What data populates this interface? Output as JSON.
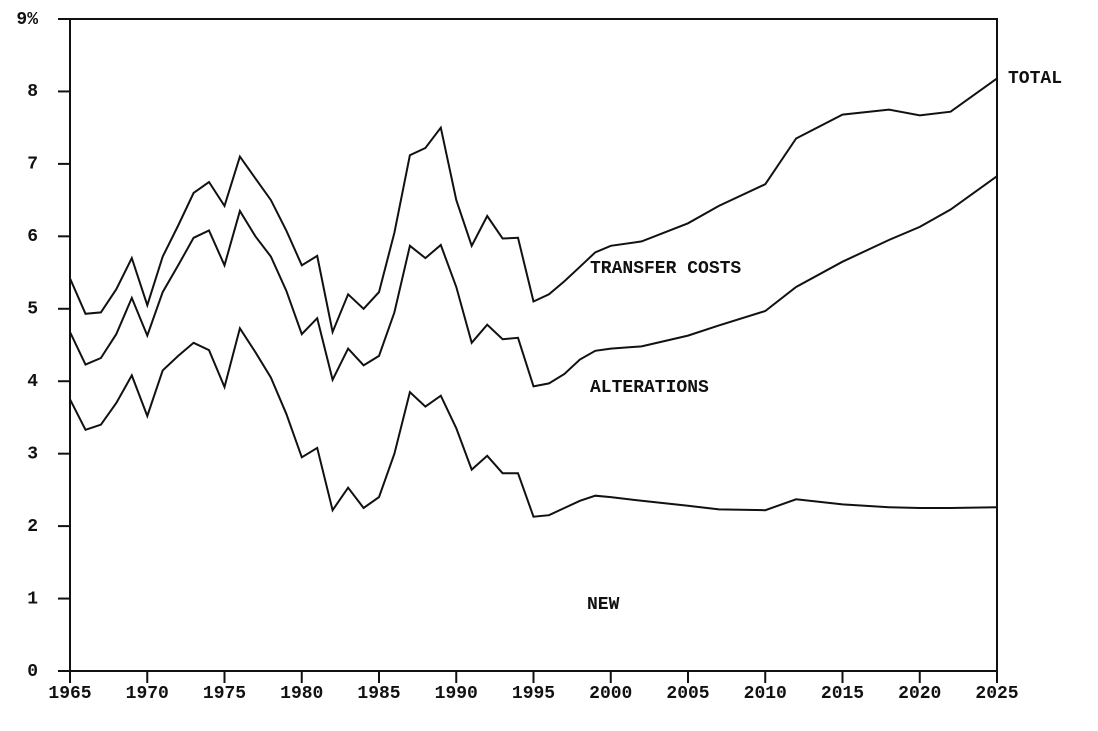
{
  "chart_data": {
    "type": "line",
    "stacked": true,
    "annotations": [
      "TOTAL"
    ],
    "x": [
      1965,
      1966,
      1967,
      1968,
      1969,
      1970,
      1971,
      1972,
      1973,
      1974,
      1975,
      1976,
      1977,
      1978,
      1979,
      1980,
      1981,
      1982,
      1983,
      1984,
      1985,
      1986,
      1987,
      1988,
      1989,
      1990,
      1991,
      1992,
      1993,
      1994,
      1995,
      1996,
      1997,
      1998,
      1999,
      2000,
      2002,
      2005,
      2007,
      2010,
      2012,
      2015,
      2018,
      2020,
      2022,
      2025
    ],
    "series": [
      {
        "name": "NEW",
        "color": "#111111",
        "values": [
          3.75,
          3.33,
          3.4,
          3.7,
          4.08,
          3.52,
          4.15,
          4.35,
          4.53,
          4.43,
          3.92,
          4.73,
          4.4,
          4.05,
          3.55,
          2.95,
          3.08,
          2.22,
          2.53,
          2.25,
          2.4,
          3.0,
          3.85,
          3.65,
          3.8,
          3.35,
          2.78,
          2.97,
          2.73,
          2.73,
          2.13,
          2.15,
          2.25,
          2.35,
          2.42,
          2.4,
          2.35,
          2.28,
          2.23,
          2.22,
          2.37,
          2.3,
          2.26,
          2.25,
          2.25,
          2.26
        ]
      },
      {
        "name": "ALTERATIONS",
        "color": "#111111",
        "values": [
          0.93,
          0.9,
          0.92,
          0.95,
          1.07,
          1.11,
          1.08,
          1.25,
          1.45,
          1.65,
          1.68,
          1.62,
          1.6,
          1.67,
          1.7,
          1.7,
          1.79,
          1.8,
          1.92,
          1.97,
          1.95,
          1.95,
          2.02,
          2.05,
          2.08,
          1.95,
          1.75,
          1.81,
          1.85,
          1.87,
          1.8,
          1.82,
          1.85,
          1.95,
          2.0,
          2.05,
          2.13,
          2.35,
          2.54,
          2.75,
          2.93,
          3.35,
          3.69,
          3.88,
          4.12,
          4.57
        ]
      },
      {
        "name": "TRANSFER COSTS",
        "color": "#111111",
        "values": [
          0.74,
          0.7,
          0.63,
          0.62,
          0.55,
          0.42,
          0.49,
          0.55,
          0.62,
          0.67,
          0.82,
          0.75,
          0.8,
          0.78,
          0.83,
          0.95,
          0.86,
          0.66,
          0.75,
          0.78,
          0.88,
          1.1,
          1.25,
          1.52,
          1.62,
          1.2,
          1.34,
          1.5,
          1.39,
          1.38,
          1.17,
          1.23,
          1.28,
          1.28,
          1.36,
          1.42,
          1.45,
          1.55,
          1.65,
          1.75,
          2.05,
          2.03,
          1.8,
          1.54,
          1.35,
          1.35
        ]
      }
    ],
    "xlim": [
      1965,
      2025
    ],
    "xticks": [
      1965,
      1970,
      1975,
      1980,
      1985,
      1990,
      1995,
      2000,
      2005,
      2010,
      2015,
      2020,
      2025
    ],
    "ylim": [
      0,
      9
    ],
    "yticks": [
      0,
      1,
      2,
      3,
      4,
      5,
      6,
      7,
      8,
      {
        "value": 9,
        "label": "9%"
      }
    ],
    "grid": false
  }
}
